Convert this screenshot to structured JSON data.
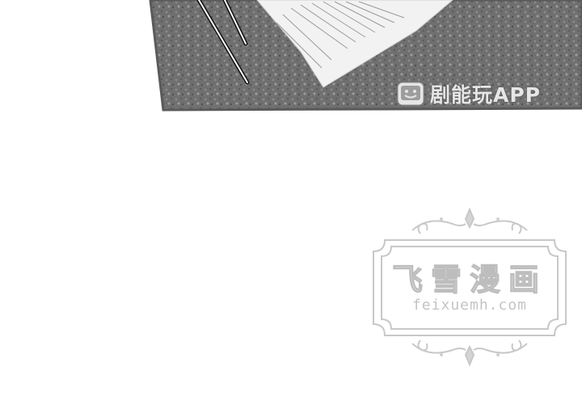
{
  "panel": {
    "image_description_icon": "photo-panel-icon"
  },
  "app_watermark": {
    "logo_icon": "tv-smiley-icon",
    "text": "剧能玩APP"
  },
  "site_watermark": {
    "title": "飞雪漫画",
    "url": "feixuemh.com",
    "frame_icon": "ornate-frame-icon"
  }
}
